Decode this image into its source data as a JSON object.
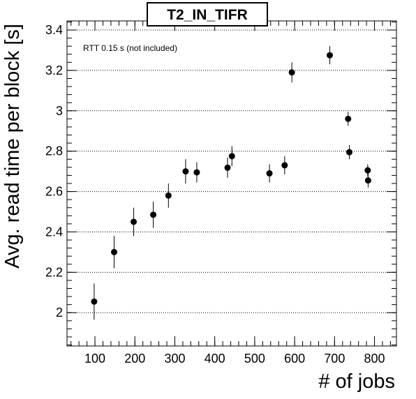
{
  "chart_data": {
    "type": "scatter",
    "title": "T2_IN_TIFR",
    "xlabel": "# of jobs",
    "ylabel": "Avg. read time per block [s]",
    "annotation": "RTT 0.15 s (not included)",
    "xlim": [
      30,
      855
    ],
    "ylim": [
      1.835,
      3.445
    ],
    "xticks": [
      100,
      200,
      300,
      400,
      500,
      600,
      700,
      800
    ],
    "xtick_labels": [
      "100",
      "200",
      "300",
      "400",
      "500",
      "600",
      "700",
      "800"
    ],
    "yticks": [
      2.0,
      2.2,
      2.4,
      2.6,
      2.8,
      3.0,
      3.2,
      3.4
    ],
    "ytick_labels": [
      "2",
      "2.2",
      "2.4",
      "2.6",
      "2.8",
      "3",
      "3.2",
      "3.4"
    ],
    "grid": {
      "x": false,
      "y": true
    },
    "marker_color": "#000000",
    "points": [
      {
        "x": 98,
        "y": 2.055,
        "err": 0.09
      },
      {
        "x": 148,
        "y": 2.3,
        "err": 0.08
      },
      {
        "x": 197,
        "y": 2.45,
        "err": 0.07
      },
      {
        "x": 246,
        "y": 2.485,
        "err": 0.065
      },
      {
        "x": 284,
        "y": 2.58,
        "err": 0.06
      },
      {
        "x": 327,
        "y": 2.7,
        "err": 0.06
      },
      {
        "x": 355,
        "y": 2.695,
        "err": 0.05
      },
      {
        "x": 432,
        "y": 2.718,
        "err": 0.05
      },
      {
        "x": 443,
        "y": 2.775,
        "err": 0.05
      },
      {
        "x": 537,
        "y": 2.69,
        "err": 0.045
      },
      {
        "x": 575,
        "y": 2.73,
        "err": 0.045
      },
      {
        "x": 593,
        "y": 3.19,
        "err": 0.05
      },
      {
        "x": 688,
        "y": 3.275,
        "err": 0.045
      },
      {
        "x": 734,
        "y": 2.96,
        "err": 0.035
      },
      {
        "x": 737,
        "y": 2.795,
        "err": 0.035
      },
      {
        "x": 783,
        "y": 2.705,
        "err": 0.03
      },
      {
        "x": 784,
        "y": 2.655,
        "err": 0.035
      }
    ]
  }
}
